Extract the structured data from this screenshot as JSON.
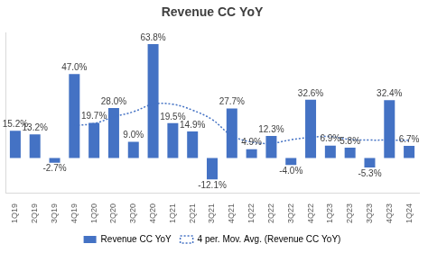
{
  "chart_data": {
    "type": "bar",
    "title": "Revenue CC YoY",
    "categories": [
      "1Q19",
      "2Q19",
      "3Q19",
      "4Q19",
      "1Q20",
      "2Q20",
      "3Q20",
      "4Q20",
      "1Q21",
      "2Q21",
      "3Q21",
      "4Q21",
      "1Q22",
      "2Q22",
      "3Q22",
      "4Q22",
      "1Q23",
      "2Q23",
      "3Q23",
      "4Q23",
      "1Q24"
    ],
    "series": [
      {
        "name": "Revenue CC YoY",
        "type": "bar",
        "color": "#4472c4",
        "values": [
          15.2,
          13.2,
          -2.7,
          47.0,
          19.7,
          28.0,
          9.0,
          63.8,
          19.5,
          14.9,
          -12.1,
          27.7,
          4.9,
          12.3,
          -4.0,
          32.6,
          6.9,
          5.8,
          -5.3,
          32.4,
          6.7
        ],
        "value_labels": [
          "15.2%",
          "13.2%",
          "-2.7%",
          "47.0%",
          "19.7%",
          "28.0%",
          "9.0%",
          "63.8%",
          "19.5%",
          "14.9%",
          "-12.1%",
          "27.7%",
          "4.9%",
          "12.3%",
          "-4.0%",
          "32.6%",
          "6.9%",
          "5.8%",
          "-5.3%",
          "32.4%",
          "6.7%"
        ],
        "data_labels": true
      },
      {
        "name": "4 per. Mov. Avg. (Revenue CC YoY)",
        "type": "line",
        "color": "#4472c4",
        "line_style": "dotted",
        "values": [
          null,
          null,
          null,
          18.2,
          19.3,
          23.0,
          25.9,
          30.1,
          30.1,
          26.8,
          21.5,
          12.5,
          8.9,
          8.2,
          10.2,
          11.5,
          12.0,
          10.3,
          10.0,
          10.0,
          9.9
        ]
      }
    ],
    "ylim": [
      -20,
      70
    ],
    "grid": false,
    "legend": "bottom",
    "tick_labels": "x"
  }
}
